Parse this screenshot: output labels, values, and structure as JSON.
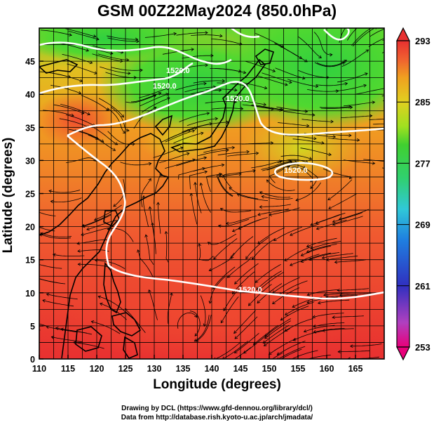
{
  "title": "GSM 00Z22May2024 (850.0hPa)",
  "xlabel": "Longitude (degrees)",
  "ylabel": "Latitude  (degrees)",
  "credits": {
    "line1": "Drawing by DCL (https://www.gfd-dennou.org/library/dcl/)",
    "line2": "Data from http://database.rish.kyoto-u.ac.jp/arch/jmadata/"
  },
  "x_ticks": [
    "110",
    "115",
    "120",
    "125",
    "130",
    "135",
    "140",
    "145",
    "150",
    "155",
    "160",
    "165"
  ],
  "y_ticks": [
    "0",
    "5",
    "10",
    "15",
    "20",
    "25",
    "30",
    "35",
    "40",
    "45"
  ],
  "colorbar": {
    "ticks": [
      "293",
      "285",
      "277",
      "269",
      "261",
      "253"
    ],
    "stops": [
      "#e8007a",
      "#c050c0",
      "#4040c8",
      "#2080e0",
      "#30c0e0",
      "#30d0a0",
      "#30d040",
      "#90e020",
      "#e0d020",
      "#f0a020",
      "#f06030",
      "#e83030"
    ]
  },
  "contour_labels": [
    "1520.0",
    "1520.0",
    "1520.0",
    "1520.0",
    "1520.0"
  ],
  "map": {
    "lon_range": [
      110,
      170
    ],
    "lat_range": [
      0,
      50
    ],
    "field": "temperature (K) with wind streamlines and geopotential height contours"
  },
  "colors": {
    "warm": "#e83030",
    "orange": "#f0a020",
    "yellow": "#e0d020",
    "green": "#30d040",
    "contour": "#ffffff",
    "coast": "#000000"
  }
}
